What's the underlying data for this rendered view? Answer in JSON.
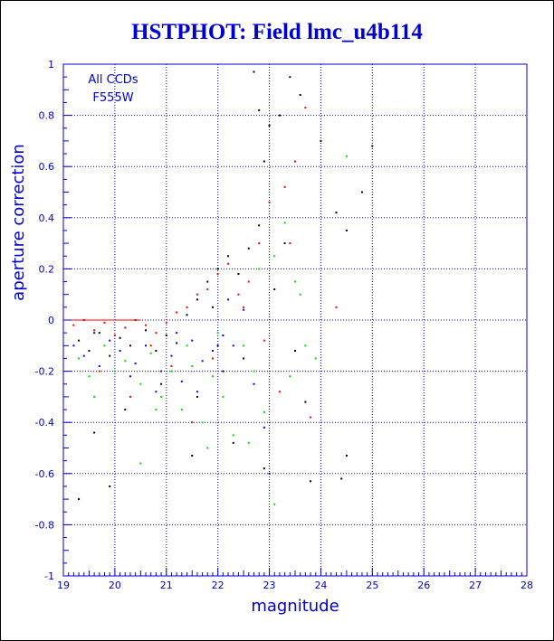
{
  "colors": {
    "axis": "#0000cc",
    "grid": "#0000cc",
    "title": "#0000cc",
    "points_black": "#000000",
    "points_red": "#ff0000",
    "points_green": "#00dd00",
    "points_blue": "#0000ff",
    "zero_line": "#ff0000"
  },
  "chart_data": {
    "type": "scatter",
    "title": "HSTPHOT: Field lmc_u4b114",
    "xlabel": "magnitude",
    "ylabel": "aperture correction",
    "xlim": [
      19,
      28
    ],
    "ylim": [
      -1,
      1
    ],
    "x_ticks": [
      "19",
      "20",
      "21",
      "22",
      "23",
      "24",
      "25",
      "26",
      "27",
      "28"
    ],
    "y_ticks": [
      "-1",
      "-0.8",
      "-0.6",
      "-0.4",
      "-0.2",
      "0",
      "0.2",
      "0.4",
      "0.6",
      "0.8",
      "1"
    ],
    "annotations": [
      "All CCDs",
      "F555W"
    ],
    "grid": true,
    "series": [
      {
        "color": "black",
        "points": [
          [
            19.3,
            -0.08
          ],
          [
            19.5,
            -0.12
          ],
          [
            19.7,
            -0.05
          ],
          [
            19.9,
            -0.14
          ],
          [
            20.1,
            -0.07
          ],
          [
            20.3,
            -0.1
          ],
          [
            20.6,
            -0.04
          ],
          [
            20.8,
            -0.12
          ],
          [
            21.0,
            -0.06
          ],
          [
            21.2,
            -0.09
          ],
          [
            21.4,
            0.02
          ],
          [
            21.6,
            0.08
          ],
          [
            21.8,
            0.15
          ],
          [
            22.0,
            0.2
          ],
          [
            22.2,
            0.25
          ],
          [
            22.4,
            0.18
          ],
          [
            22.6,
            0.28
          ],
          [
            22.7,
            0.97
          ],
          [
            22.8,
            0.82
          ],
          [
            23.0,
            0.76
          ],
          [
            23.2,
            0.8
          ],
          [
            23.4,
            0.95
          ],
          [
            23.6,
            0.88
          ],
          [
            24.0,
            0.7
          ],
          [
            24.3,
            0.42
          ],
          [
            24.5,
            0.35
          ],
          [
            24.8,
            0.5
          ],
          [
            25.0,
            0.68
          ],
          [
            22.9,
            0.62
          ],
          [
            22.8,
            0.37
          ],
          [
            23.7,
            -0.32
          ],
          [
            23.5,
            -0.12
          ],
          [
            22.5,
            -0.15
          ],
          [
            22.1,
            -0.2
          ],
          [
            21.6,
            -0.3
          ],
          [
            20.2,
            -0.35
          ],
          [
            19.6,
            -0.44
          ],
          [
            19.3,
            -0.7
          ],
          [
            19.9,
            -0.65
          ],
          [
            24.4,
            -0.62
          ],
          [
            24.5,
            -0.53
          ],
          [
            22.3,
            -0.48
          ],
          [
            22.9,
            -0.58
          ],
          [
            23.8,
            -0.63
          ],
          [
            21.5,
            -0.53
          ],
          [
            20.9,
            -0.25
          ],
          [
            22.0,
            -0.1
          ],
          [
            21.9,
            0.05
          ],
          [
            23.3,
            0.3
          ],
          [
            23.1,
            0.12
          ]
        ]
      },
      {
        "color": "red",
        "points": [
          [
            19.2,
            -0.02
          ],
          [
            19.4,
            0.0
          ],
          [
            19.6,
            -0.04
          ],
          [
            19.8,
            -0.01
          ],
          [
            20.0,
            -0.06
          ],
          [
            20.2,
            -0.03
          ],
          [
            20.4,
            0.0
          ],
          [
            20.6,
            -0.02
          ],
          [
            20.8,
            -0.05
          ],
          [
            21.0,
            -0.01
          ],
          [
            21.2,
            0.03
          ],
          [
            21.4,
            0.05
          ],
          [
            21.6,
            0.1
          ],
          [
            21.8,
            0.12
          ],
          [
            22.0,
            0.18
          ],
          [
            22.2,
            0.22
          ],
          [
            22.4,
            0.1
          ],
          [
            22.6,
            0.15
          ],
          [
            22.8,
            0.3
          ],
          [
            23.0,
            0.46
          ],
          [
            23.3,
            0.52
          ],
          [
            23.5,
            0.62
          ],
          [
            23.7,
            0.83
          ],
          [
            23.4,
            0.3
          ],
          [
            22.9,
            -0.08
          ],
          [
            24.3,
            0.05
          ],
          [
            23.2,
            -0.28
          ],
          [
            21.5,
            -0.4
          ],
          [
            20.3,
            -0.3
          ],
          [
            19.7,
            -0.2
          ],
          [
            21.9,
            -0.15
          ],
          [
            22.5,
            0.05
          ],
          [
            20.7,
            -0.1
          ],
          [
            21.1,
            -0.18
          ],
          [
            23.8,
            -0.38
          ]
        ]
      },
      {
        "color": "green",
        "points": [
          [
            19.3,
            -0.15
          ],
          [
            19.5,
            -0.22
          ],
          [
            19.8,
            -0.1
          ],
          [
            20.0,
            -0.2
          ],
          [
            20.2,
            -0.16
          ],
          [
            20.5,
            -0.25
          ],
          [
            20.7,
            -0.13
          ],
          [
            20.9,
            -0.3
          ],
          [
            21.1,
            -0.2
          ],
          [
            21.3,
            -0.35
          ],
          [
            21.5,
            -0.18
          ],
          [
            21.7,
            -0.4
          ],
          [
            21.9,
            -0.22
          ],
          [
            22.1,
            -0.3
          ],
          [
            22.3,
            -0.45
          ],
          [
            22.5,
            -0.1
          ],
          [
            22.7,
            -0.2
          ],
          [
            22.9,
            -0.36
          ],
          [
            23.1,
            0.25
          ],
          [
            23.3,
            0.38
          ],
          [
            23.5,
            0.15
          ],
          [
            23.7,
            -0.1
          ],
          [
            23.9,
            -0.15
          ],
          [
            24.5,
            0.64
          ],
          [
            23.4,
            -0.22
          ],
          [
            23.1,
            -0.72
          ],
          [
            20.5,
            -0.56
          ],
          [
            21.8,
            -0.5
          ],
          [
            22.6,
            -0.48
          ],
          [
            19.6,
            -0.3
          ],
          [
            22.0,
            -0.05
          ],
          [
            21.4,
            -0.1
          ],
          [
            20.8,
            -0.35
          ],
          [
            22.8,
            0.2
          ],
          [
            23.6,
            0.1
          ]
        ]
      },
      {
        "color": "blue",
        "points": [
          [
            19.2,
            -0.1
          ],
          [
            19.4,
            -0.14
          ],
          [
            19.7,
            -0.18
          ],
          [
            19.9,
            -0.08
          ],
          [
            20.1,
            -0.12
          ],
          [
            20.4,
            -0.17
          ],
          [
            20.6,
            -0.1
          ],
          [
            20.9,
            -0.2
          ],
          [
            21.1,
            -0.14
          ],
          [
            21.3,
            -0.24
          ],
          [
            21.5,
            -0.08
          ],
          [
            21.7,
            -0.16
          ],
          [
            21.9,
            -0.12
          ],
          [
            22.1,
            -0.06
          ],
          [
            22.3,
            -0.1
          ],
          [
            22.5,
            0.04
          ],
          [
            22.7,
            -0.25
          ],
          [
            22.9,
            -0.42
          ],
          [
            23.0,
            -0.6
          ],
          [
            21.6,
            -0.28
          ],
          [
            20.3,
            -0.22
          ],
          [
            19.6,
            -0.05
          ],
          [
            20.8,
            -0.28
          ],
          [
            22.2,
            0.08
          ],
          [
            21.2,
            -0.05
          ]
        ]
      }
    ]
  }
}
